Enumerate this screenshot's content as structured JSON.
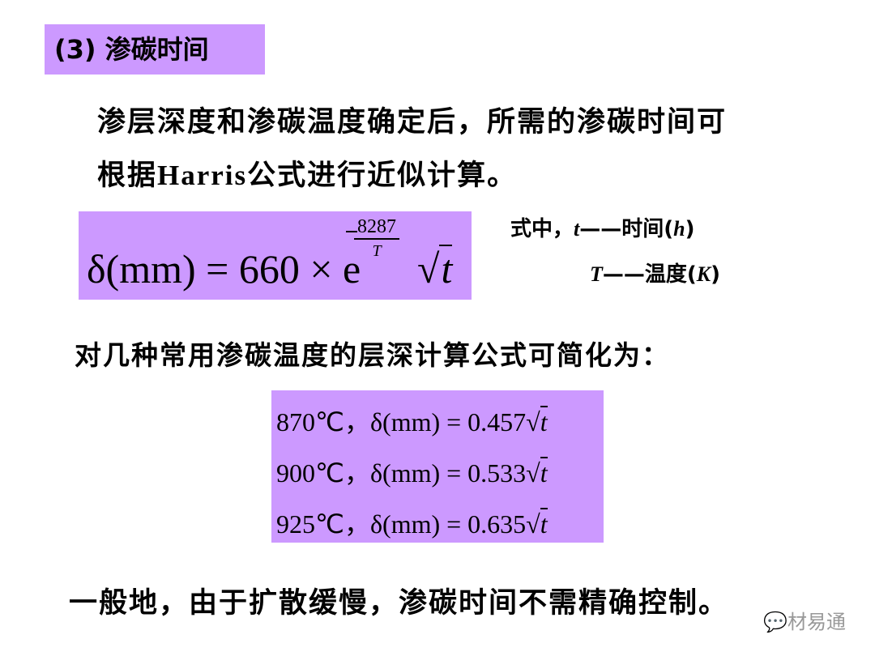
{
  "title": "(3) 渗碳时间",
  "intro_line1": "渗层深度和渗碳温度确定后，所需的渗碳时间可",
  "intro_line2_a": "根据",
  "intro_line2_b": "Harris",
  "intro_line2_c": "公式进行近似计算。",
  "formula": {
    "lhs": "δ(mm) = 660 × e",
    "exp_num": "8287",
    "exp_den": "T",
    "sqrt_sym": "√",
    "sqrt_var": "t"
  },
  "legend": {
    "line1_prefix": "式中，",
    "line1_var": "t",
    "line1_text": "——时间(",
    "line1_unit": "h",
    "line1_close": ")",
    "line2_var": "T",
    "line2_text": "——温度(",
    "line2_unit": "K",
    "line2_close": ")"
  },
  "simplify_text": "对几种常用渗碳温度的层深计算公式可简化为：",
  "simplified": [
    {
      "temp": "870℃，",
      "expr": "δ(mm) = 0.457",
      "var": "t"
    },
    {
      "temp": "900℃，",
      "expr": "δ(mm) = 0.533",
      "var": "t"
    },
    {
      "temp": "925℃，",
      "expr": "δ(mm) = 0.635",
      "var": "t"
    }
  ],
  "conclusion": "一般地，由于扩散缓慢，渗碳时间不需精确控制。",
  "watermark": "材易通",
  "colors": {
    "highlight": "#cc99ff"
  }
}
